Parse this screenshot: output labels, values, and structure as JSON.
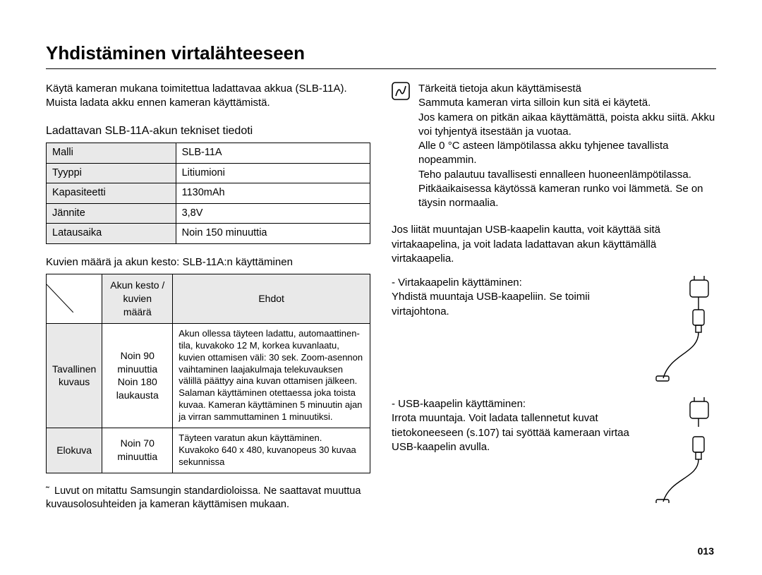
{
  "title": "Yhdistäminen virtalähteeseen",
  "pageNumber": "013",
  "left": {
    "intro": "Käytä kameran mukana toimitettua ladattavaa akkua (SLB-11A). Muista ladata akku ennen kameran käyttämistä.",
    "spec_heading": "Ladattavan SLB-11A-akun tekniset tiedoti",
    "spec_rows": [
      {
        "k": "Malli",
        "v": "SLB-11A"
      },
      {
        "k": "Tyyppi",
        "v": "Litiumioni"
      },
      {
        "k": "Kapasiteetti",
        "v": "1130mAh"
      },
      {
        "k": "Jännite",
        "v": "3,8V"
      },
      {
        "k": "Latausaika",
        "v": "Noin 150 minuuttia"
      }
    ],
    "usage_heading": "Kuvien määrä ja akun kesto: SLB-11A:n käyttäminen",
    "usage_headers": {
      "left": "Akun kesto / kuvien määrä",
      "right": "Ehdot"
    },
    "usage_rows": [
      {
        "mode": "Tavallinen kuvaus",
        "dur": "Noin 90 minuuttia Noin 180 laukausta",
        "cond": "Akun ollessa täyteen ladattu, automaattinen-tila, kuvakoko 12 M, korkea kuvanlaatu, kuvien ottamisen väli: 30 sek. Zoom-asennon vaihtaminen laajakulmaja telekuvauksen välillä päättyy aina kuvan ottamisen jälkeen. Salaman käyttäminen otettaessa joka toista kuvaa. Kameran käyttäminen 5 minuutin ajan ja virran sammuttaminen 1 minuutiksi."
      },
      {
        "mode": "Elokuva",
        "dur": "Noin 70 minuuttia",
        "cond": "Täyteen varatun akun käyttäminen. Kuvakoko 640 x 480, kuvanopeus 30 kuvaa sekunnissa"
      }
    ],
    "footnote": "Luvut on mitattu Samsungin standardioloissa. Ne saattavat muuttua kuvausolosuhteiden ja kameran käyttämisen mukaan."
  },
  "right": {
    "note_title": "Tärkeitä tietoja akun käyttämisestä",
    "note_lines": [
      "Sammuta kameran virta silloin kun sitä ei käytetä.",
      "Jos kamera on pitkän aikaa käyttämättä, poista akku siitä. Akku voi tyhjentyä itsestään ja vuotaa.",
      "Alle 0 °C asteen lämpötilassa akku tyhjenee tavallista nopeammin.",
      "Teho palautuu tavallisesti ennalleen huoneenlämpötilassa.",
      "Pitkäaikaisessa käytössä kameran runko voi lämmetä. Se on täysin normaalia."
    ],
    "usb_para": "Jos liität muuntajan USB-kaapelin kautta, voit käyttää sitä virtakaapelina, ja voit ladata ladattavan akun käyttämällä virtakaapelia.",
    "power_item_title": "- Virtakaapelin käyttäminen:",
    "power_item_body": "Yhdistä muuntaja USB-kaapeliin. Se toimii virtajohtona.",
    "usb_item_title": "- USB-kaapelin käyttäminen:",
    "usb_item_body": "Irrota muuntaja. Voit ladata tallennetut kuvat tietokoneeseen (s.107) tai syöttää kameraan virtaa USB-kaapelin avulla."
  }
}
